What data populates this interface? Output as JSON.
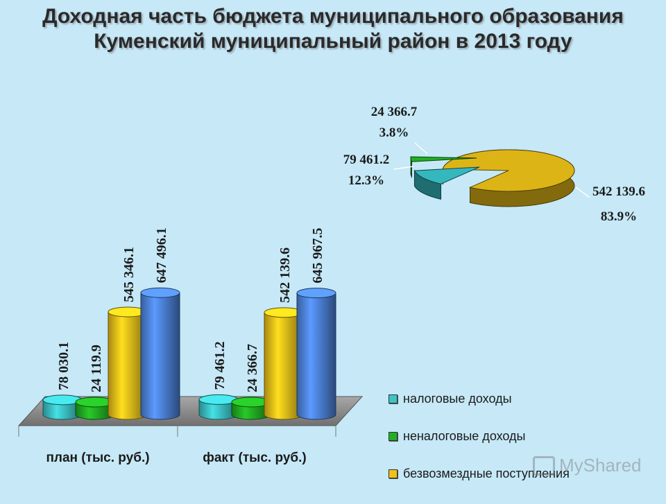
{
  "title": {
    "line1": "Доходная часть бюджета муниципального образования",
    "line2": "Куменский муниципальный район в 2013 году"
  },
  "watermark": "MyShared",
  "chart_data": [
    {
      "type": "bar",
      "categories": [
        "план (тыс. руб.)",
        "факт (тыс. руб.)"
      ],
      "series": [
        {
          "name": "налоговые доходы",
          "color": "#3cc4c8",
          "values": [
            78030.1,
            79461.2
          ],
          "labels": [
            "78 030.1",
            "79 461.2"
          ]
        },
        {
          "name": "неналоговые доходы",
          "color": "#22b022",
          "values": [
            24119.9,
            24366.7
          ],
          "labels": [
            "24 119.9",
            "24 366.7"
          ]
        },
        {
          "name": "безвозмездные поступления",
          "color": "#f2c21a",
          "values": [
            545346.1,
            542139.6
          ],
          "labels": [
            "545 346.1",
            "542 139.6"
          ]
        },
        {
          "color": "#4f86e0",
          "values": [
            647496.1,
            645967.5
          ],
          "labels": [
            "647 496.1",
            "645 967.5"
          ]
        }
      ]
    },
    {
      "type": "pie",
      "slices": [
        {
          "value": 542139.6,
          "label": "542 139.6",
          "percent": "83.9%",
          "color": "#c9a414"
        },
        {
          "value": 79461.2,
          "label": "79 461.2",
          "percent": "12.3%",
          "color": "#2fa7ad"
        },
        {
          "value": 24366.7,
          "label": "24 366.7",
          "percent": "3.8%",
          "color": "#1fa01f"
        }
      ]
    }
  ],
  "legend": [
    {
      "label": "налоговые доходы",
      "color": "#3cc4c8"
    },
    {
      "label": "неналоговые доходы",
      "color": "#22b022"
    },
    {
      "label": "безвозмездные поступления",
      "color": "#f2c21a"
    }
  ]
}
